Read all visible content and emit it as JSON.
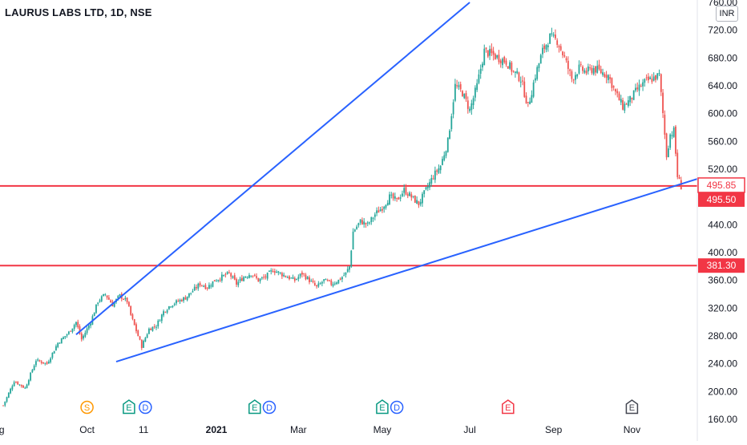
{
  "header": {
    "title": "LAURUS LABS LTD, 1D, NSE",
    "currency": "INR"
  },
  "colors": {
    "up": "#26a69a",
    "down": "#ef5350",
    "trendline": "#2962ff",
    "support": "#f23645",
    "axis_text": "#131722",
    "event_split": "#ff9800",
    "event_earnings": "#089981",
    "event_dividend": "#2962ff",
    "event_earnings_neg": "#f23645",
    "event_earnings_future": "#434651"
  },
  "chart_data": {
    "type": "candlestick",
    "title": "LAURUS LABS LTD, 1D, NSE",
    "ylim": [
      160,
      760
    ],
    "y_ticks": [
      "160.00",
      "200.00",
      "240.00",
      "280.00",
      "320.00",
      "360.00",
      "400.00",
      "440.00",
      "520.00",
      "560.00",
      "600.00",
      "640.00",
      "680.00",
      "720.00",
      "760.00"
    ],
    "x_tick_labels": [
      "Aug",
      "Oct",
      "11",
      "2021",
      "Mar",
      "May",
      "Jul",
      "Sep",
      "Nov"
    ],
    "x_ticks_bold": [
      "2021"
    ],
    "price_labels": [
      {
        "text": "495.85",
        "value": 495.85,
        "style": "outline"
      },
      {
        "text": "495.50",
        "value": 495.5,
        "style": "filled"
      },
      {
        "text": "381.30",
        "value": 381.3,
        "style": "filled"
      }
    ],
    "horizontal_lines": [
      495.85,
      381.3
    ],
    "anchors": [
      {
        "day": 0,
        "price": 180
      },
      {
        "day": 6,
        "price": 215
      },
      {
        "day": 12,
        "price": 205
      },
      {
        "day": 18,
        "price": 245
      },
      {
        "day": 24,
        "price": 240
      },
      {
        "day": 30,
        "price": 270
      },
      {
        "day": 36,
        "price": 285
      },
      {
        "day": 40,
        "price": 300
      },
      {
        "day": 43,
        "price": 275
      },
      {
        "day": 48,
        "price": 300
      },
      {
        "day": 52,
        "price": 330
      },
      {
        "day": 56,
        "price": 340
      },
      {
        "day": 60,
        "price": 325
      },
      {
        "day": 64,
        "price": 338
      },
      {
        "day": 68,
        "price": 330
      },
      {
        "day": 70,
        "price": 310
      },
      {
        "day": 74,
        "price": 280
      },
      {
        "day": 76,
        "price": 265
      },
      {
        "day": 80,
        "price": 290
      },
      {
        "day": 84,
        "price": 295
      },
      {
        "day": 88,
        "price": 315
      },
      {
        "day": 92,
        "price": 325
      },
      {
        "day": 96,
        "price": 330
      },
      {
        "day": 100,
        "price": 335
      },
      {
        "day": 104,
        "price": 345
      },
      {
        "day": 108,
        "price": 355
      },
      {
        "day": 112,
        "price": 350
      },
      {
        "day": 116,
        "price": 360
      },
      {
        "day": 120,
        "price": 365
      },
      {
        "day": 124,
        "price": 370
      },
      {
        "day": 128,
        "price": 355
      },
      {
        "day": 132,
        "price": 365
      },
      {
        "day": 136,
        "price": 370
      },
      {
        "day": 140,
        "price": 360
      },
      {
        "day": 144,
        "price": 365
      },
      {
        "day": 148,
        "price": 375
      },
      {
        "day": 152,
        "price": 370
      },
      {
        "day": 156,
        "price": 365
      },
      {
        "day": 160,
        "price": 360
      },
      {
        "day": 164,
        "price": 370
      },
      {
        "day": 168,
        "price": 360
      },
      {
        "day": 172,
        "price": 350
      },
      {
        "day": 176,
        "price": 360
      },
      {
        "day": 180,
        "price": 355
      },
      {
        "day": 184,
        "price": 360
      },
      {
        "day": 188,
        "price": 370
      },
      {
        "day": 190,
        "price": 380
      },
      {
        "day": 192,
        "price": 430
      },
      {
        "day": 196,
        "price": 445
      },
      {
        "day": 200,
        "price": 440
      },
      {
        "day": 204,
        "price": 455
      },
      {
        "day": 208,
        "price": 465
      },
      {
        "day": 212,
        "price": 480
      },
      {
        "day": 216,
        "price": 475
      },
      {
        "day": 220,
        "price": 490
      },
      {
        "day": 224,
        "price": 480
      },
      {
        "day": 228,
        "price": 470
      },
      {
        "day": 232,
        "price": 490
      },
      {
        "day": 236,
        "price": 510
      },
      {
        "day": 240,
        "price": 525
      },
      {
        "day": 244,
        "price": 560
      },
      {
        "day": 248,
        "price": 640
      },
      {
        "day": 252,
        "price": 630
      },
      {
        "day": 256,
        "price": 605
      },
      {
        "day": 260,
        "price": 640
      },
      {
        "day": 264,
        "price": 690
      },
      {
        "day": 268,
        "price": 685
      },
      {
        "day": 272,
        "price": 680
      },
      {
        "day": 276,
        "price": 675
      },
      {
        "day": 280,
        "price": 660
      },
      {
        "day": 284,
        "price": 650
      },
      {
        "day": 288,
        "price": 610
      },
      {
        "day": 292,
        "price": 655
      },
      {
        "day": 296,
        "price": 690
      },
      {
        "day": 300,
        "price": 710
      },
      {
        "day": 304,
        "price": 705
      },
      {
        "day": 308,
        "price": 680
      },
      {
        "day": 312,
        "price": 650
      },
      {
        "day": 316,
        "price": 665
      },
      {
        "day": 320,
        "price": 660
      },
      {
        "day": 324,
        "price": 665
      },
      {
        "day": 328,
        "price": 660
      },
      {
        "day": 332,
        "price": 655
      },
      {
        "day": 336,
        "price": 630
      },
      {
        "day": 340,
        "price": 610
      },
      {
        "day": 344,
        "price": 620
      },
      {
        "day": 348,
        "price": 635
      },
      {
        "day": 352,
        "price": 645
      },
      {
        "day": 356,
        "price": 650
      },
      {
        "day": 360,
        "price": 655
      },
      {
        "day": 362,
        "price": 600
      },
      {
        "day": 364,
        "price": 540
      },
      {
        "day": 366,
        "price": 570
      },
      {
        "day": 368,
        "price": 575
      },
      {
        "day": 370,
        "price": 510
      },
      {
        "day": 372,
        "price": 495
      }
    ],
    "trendlines": [
      {
        "name": "upper-channel",
        "from": {
          "day": 40,
          "price": 282
        },
        "to": {
          "day": 256,
          "price": 760
        }
      },
      {
        "name": "lower-support",
        "from": {
          "day": 62,
          "price": 243
        },
        "to": {
          "day": 382,
          "price": 507
        }
      }
    ],
    "events": [
      {
        "letter": "S",
        "kind": "split",
        "day": 46
      },
      {
        "letter": "E",
        "kind": "earnings",
        "day": 69
      },
      {
        "letter": "D",
        "kind": "dividend",
        "day": 78
      },
      {
        "letter": "E",
        "kind": "earnings",
        "day": 138
      },
      {
        "letter": "D",
        "kind": "dividend",
        "day": 146
      },
      {
        "letter": "E",
        "kind": "earnings",
        "day": 208
      },
      {
        "letter": "D",
        "kind": "dividend",
        "day": 216
      },
      {
        "letter": "E",
        "kind": "earnings_neg",
        "day": 277
      },
      {
        "letter": "E",
        "kind": "earnings_future",
        "day": 345
      }
    ],
    "day_range": [
      0,
      380
    ],
    "x_tick_days": [
      -4,
      46,
      77,
      117,
      162,
      208,
      256,
      302,
      345
    ]
  }
}
